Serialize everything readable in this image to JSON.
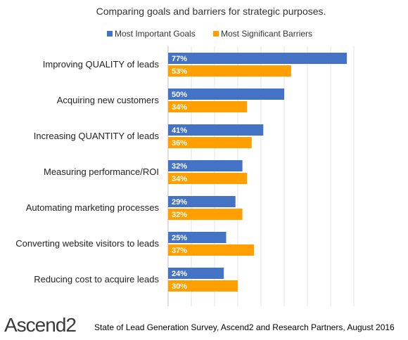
{
  "chart_data": {
    "type": "bar",
    "orientation": "horizontal",
    "title": "Comparing goals and barriers for strategic purposes.",
    "categories": [
      "Improving QUALITY of leads",
      "Acquiring new customers",
      "Increasing QUANTITY of leads",
      "Measuring performance/ROI",
      "Automating marketing processes",
      "Converting website visitors to leads",
      "Reducing cost to acquire leads"
    ],
    "series": [
      {
        "name": "Most Important Goals",
        "color": "#4472C4",
        "values": [
          77,
          50,
          41,
          32,
          29,
          25,
          24
        ]
      },
      {
        "name": "Most Significant Barriers",
        "color": "#FFA000",
        "values": [
          53,
          34,
          36,
          34,
          32,
          37,
          30
        ]
      }
    ],
    "value_format": "percent",
    "xlim": [
      0,
      80
    ],
    "grid": true,
    "legend_position": "top"
  },
  "footer": {
    "logo_text": "Ascend",
    "logo_number": "2",
    "source": "State of Lead Generation Survey, Ascend2 and Research Partners, August 2016"
  }
}
